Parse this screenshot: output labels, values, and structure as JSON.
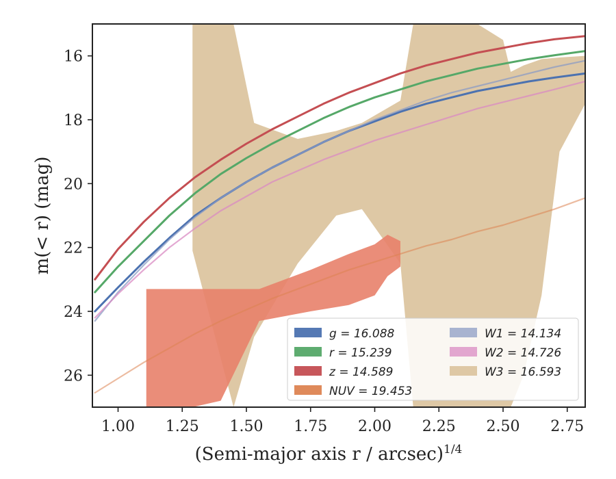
{
  "chart_data": {
    "type": "line",
    "xlabel": "(Semi-major axis r / arcsec)",
    "xlabel_exponent": "1/4",
    "ylabel": "m(< r) (mag)",
    "xlim": [
      0.9,
      2.82
    ],
    "ylim": [
      27.0,
      15.0
    ],
    "y_inverted": true,
    "x_ticks": [
      1.0,
      1.25,
      1.5,
      1.75,
      2.0,
      2.25,
      2.5,
      2.75
    ],
    "x_tick_labels": [
      "1.00",
      "1.25",
      "1.50",
      "1.75",
      "2.00",
      "2.25",
      "2.50",
      "2.75"
    ],
    "y_ticks": [
      16,
      18,
      20,
      22,
      24,
      26
    ],
    "y_tick_labels": [
      "16",
      "18",
      "20",
      "22",
      "24",
      "26"
    ],
    "grid": false,
    "legend_location": "lower-right",
    "series": [
      {
        "name": "g = 16.088",
        "color": "#4c72b0",
        "kind": "curve",
        "x": [
          0.91,
          1.0,
          1.1,
          1.2,
          1.3,
          1.4,
          1.5,
          1.6,
          1.7,
          1.8,
          1.9,
          2.0,
          2.1,
          2.2,
          2.3,
          2.4,
          2.5,
          2.6,
          2.7,
          2.82
        ],
        "y": [
          24.0,
          23.25,
          22.45,
          21.7,
          21.0,
          20.45,
          19.95,
          19.5,
          19.1,
          18.7,
          18.35,
          18.05,
          17.75,
          17.5,
          17.3,
          17.1,
          16.95,
          16.8,
          16.68,
          16.55
        ]
      },
      {
        "name": "r = 15.239",
        "color": "#55a868",
        "kind": "curve",
        "x": [
          0.91,
          1.0,
          1.1,
          1.2,
          1.3,
          1.4,
          1.5,
          1.6,
          1.7,
          1.8,
          1.9,
          2.0,
          2.1,
          2.2,
          2.3,
          2.4,
          2.5,
          2.6,
          2.7,
          2.82
        ],
        "y": [
          23.4,
          22.6,
          21.8,
          21.0,
          20.3,
          19.7,
          19.2,
          18.75,
          18.35,
          17.95,
          17.6,
          17.3,
          17.05,
          16.8,
          16.6,
          16.4,
          16.25,
          16.1,
          15.98,
          15.85
        ]
      },
      {
        "name": "z = 14.589",
        "color": "#c44e52",
        "kind": "curve",
        "x": [
          0.91,
          1.0,
          1.1,
          1.2,
          1.3,
          1.4,
          1.5,
          1.6,
          1.7,
          1.8,
          1.9,
          2.0,
          2.1,
          2.2,
          2.3,
          2.4,
          2.5,
          2.6,
          2.7,
          2.82
        ],
        "y": [
          23.0,
          22.05,
          21.2,
          20.45,
          19.8,
          19.25,
          18.75,
          18.3,
          17.9,
          17.5,
          17.15,
          16.85,
          16.55,
          16.3,
          16.1,
          15.9,
          15.75,
          15.6,
          15.48,
          15.38
        ]
      },
      {
        "name": "NUV = 19.453",
        "color": "#dd8452",
        "kind": "curve",
        "x": [
          0.91,
          1.0,
          1.1,
          1.2,
          1.3,
          1.4,
          1.5,
          1.6,
          1.7,
          1.8,
          1.9,
          2.0,
          2.1,
          2.2,
          2.3,
          2.4,
          2.5,
          2.6,
          2.7,
          2.82
        ],
        "y": [
          26.55,
          26.1,
          25.6,
          25.15,
          24.7,
          24.3,
          23.95,
          23.6,
          23.3,
          23.0,
          22.7,
          22.45,
          22.2,
          21.95,
          21.75,
          21.5,
          21.3,
          21.05,
          20.8,
          20.45
        ]
      },
      {
        "name": "W1 = 14.134",
        "color": "#8c9cc4",
        "kind": "curve",
        "x": [
          0.91,
          1.0,
          1.1,
          1.2,
          1.3,
          1.4,
          1.5,
          1.6,
          1.7,
          1.8,
          1.9,
          2.0,
          2.1,
          2.2,
          2.3,
          2.4,
          2.5,
          2.6,
          2.7,
          2.82
        ],
        "y": [
          24.3,
          23.4,
          22.55,
          21.75,
          21.05,
          20.45,
          19.95,
          19.5,
          19.1,
          18.7,
          18.35,
          18.0,
          17.7,
          17.4,
          17.15,
          16.95,
          16.75,
          16.55,
          16.35,
          16.15
        ]
      },
      {
        "name": "W2 = 14.726",
        "color": "#da8bc3",
        "kind": "curve",
        "x": [
          0.91,
          1.0,
          1.1,
          1.2,
          1.3,
          1.4,
          1.5,
          1.6,
          1.7,
          1.8,
          1.9,
          2.0,
          2.1,
          2.2,
          2.3,
          2.4,
          2.5,
          2.6,
          2.7,
          2.82
        ],
        "y": [
          24.2,
          23.45,
          22.7,
          22.0,
          21.4,
          20.85,
          20.4,
          19.95,
          19.6,
          19.25,
          18.95,
          18.65,
          18.4,
          18.15,
          17.9,
          17.65,
          17.45,
          17.25,
          17.05,
          16.8
        ]
      },
      {
        "name": "W3 = 16.593",
        "color": "#ccb974",
        "kind": "band",
        "x": [
          1.29,
          1.45,
          1.53,
          1.7,
          1.85,
          1.95,
          2.1,
          2.15,
          2.2,
          2.3,
          2.4,
          2.5,
          2.53,
          2.58,
          2.65,
          2.72,
          2.82
        ],
        "y_upper": [
          15.0,
          15.0,
          18.1,
          18.6,
          18.35,
          18.1,
          17.4,
          15.0,
          15.0,
          15.0,
          15.0,
          15.5,
          16.5,
          16.3,
          16.1,
          16.05,
          16.0
        ],
        "y_lower": [
          22.1,
          27.0,
          24.8,
          22.5,
          21.0,
          20.8,
          22.5,
          27.0,
          27.0,
          27.0,
          27.0,
          27.0,
          27.0,
          26.0,
          23.5,
          19.0,
          17.5
        ]
      },
      {
        "name": "NUV band",
        "color": "#e8816a",
        "kind": "band-silent",
        "x": [
          1.11,
          1.29,
          1.4,
          1.55,
          1.75,
          1.9,
          2.0,
          2.05,
          2.1
        ],
        "y_upper": [
          23.3,
          23.3,
          23.3,
          23.3,
          22.7,
          22.2,
          21.9,
          21.6,
          21.8
        ],
        "y_lower": [
          27.0,
          27.0,
          26.8,
          24.3,
          24.0,
          23.8,
          23.5,
          22.9,
          22.6
        ]
      }
    ],
    "legend": [
      {
        "label": "g = 16.088",
        "color": "#4c72b0"
      },
      {
        "label": "r = 15.239",
        "color": "#55a868"
      },
      {
        "label": "z = 14.589",
        "color": "#c44e52"
      },
      {
        "label": "NUV = 19.453",
        "color": "#dd8452"
      },
      {
        "label": "W1 = 14.134",
        "color": "#8c9cc4"
      },
      {
        "label": "W2 = 14.726",
        "color": "#da8bc3"
      },
      {
        "label": "W3 = 16.593",
        "color": "#ccb974"
      }
    ]
  }
}
